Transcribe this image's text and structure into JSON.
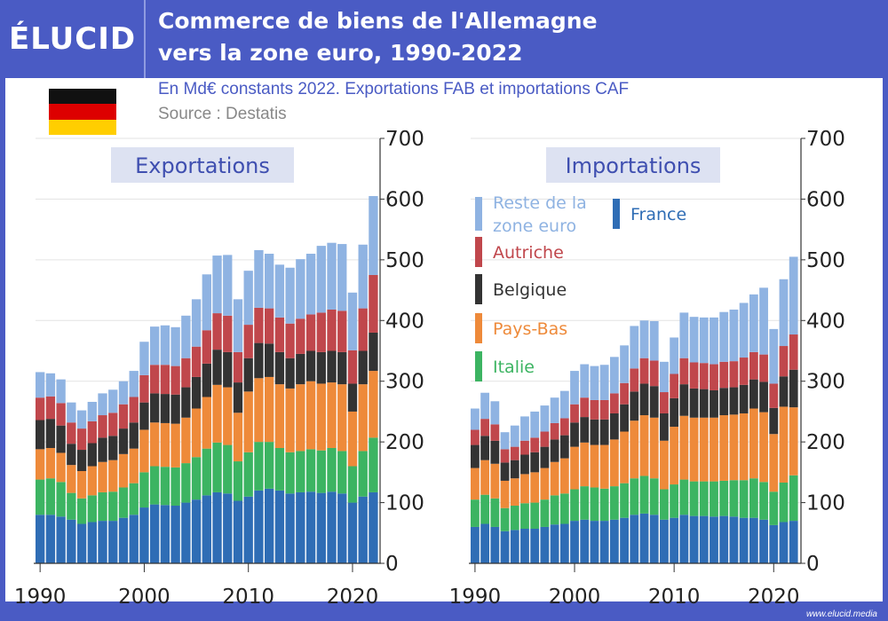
{
  "header": {
    "brand": "ÉLUCID",
    "title_line1": "Commerce de biens de l'Allemagne",
    "title_line2": "vers la zone euro, 1990-2022",
    "subtitle": "En Md€ constants 2022. Exportations FAB et importations CAF",
    "source": "Source : Destatis"
  },
  "footer": {
    "url": "www.elucid.media"
  },
  "colors": {
    "background": "#4a5bc4",
    "France": "#2f6db5",
    "Italie": "#3cb462",
    "Pays-Bas": "#ee8a3a",
    "Belgique": "#333333",
    "Autriche": "#c0474c",
    "Reste de la zone euro": "#8fb3e2",
    "flag": [
      "#111111",
      "#dd0000",
      "#ffce00"
    ]
  },
  "chart_data": [
    {
      "type": "bar",
      "stacked": true,
      "title": "Exportations",
      "x": [
        1990,
        1991,
        1992,
        1993,
        1994,
        1995,
        1996,
        1997,
        1998,
        1999,
        2000,
        2001,
        2002,
        2003,
        2004,
        2005,
        2006,
        2007,
        2008,
        2009,
        2010,
        2011,
        2012,
        2013,
        2014,
        2015,
        2016,
        2017,
        2018,
        2019,
        2020,
        2021,
        2022
      ],
      "ylim": [
        0,
        700
      ],
      "yticks": [
        0,
        100,
        200,
        300,
        400,
        500,
        600,
        700
      ],
      "xticks": [
        1990,
        2000,
        2010,
        2020
      ],
      "series": [
        {
          "name": "France",
          "values": [
            80,
            80,
            77,
            72,
            65,
            68,
            70,
            70,
            75,
            80,
            92,
            97,
            96,
            95,
            100,
            105,
            112,
            117,
            115,
            103,
            110,
            120,
            123,
            120,
            115,
            117,
            118,
            116,
            118,
            115,
            100,
            110,
            117
          ]
        },
        {
          "name": "Italie",
          "values": [
            58,
            60,
            57,
            44,
            42,
            44,
            47,
            48,
            50,
            52,
            58,
            63,
            63,
            63,
            65,
            70,
            77,
            82,
            80,
            65,
            73,
            80,
            77,
            70,
            68,
            68,
            70,
            70,
            72,
            70,
            60,
            75,
            90
          ]
        },
        {
          "name": "Pays-Bas",
          "values": [
            50,
            50,
            48,
            46,
            45,
            48,
            50,
            52,
            55,
            57,
            70,
            72,
            72,
            72,
            75,
            80,
            85,
            95,
            95,
            80,
            100,
            105,
            107,
            105,
            105,
            110,
            112,
            110,
            108,
            110,
            90,
            110,
            110
          ]
        },
        {
          "name": "Belgique",
          "values": [
            48,
            48,
            45,
            35,
            35,
            38,
            40,
            40,
            42,
            43,
            45,
            48,
            48,
            48,
            50,
            52,
            55,
            58,
            58,
            50,
            55,
            58,
            55,
            53,
            50,
            50,
            50,
            52,
            52,
            53,
            46,
            55,
            63
          ]
        },
        {
          "name": "Autriche",
          "values": [
            37,
            37,
            37,
            35,
            35,
            36,
            37,
            38,
            40,
            42,
            45,
            47,
            48,
            47,
            48,
            50,
            55,
            60,
            60,
            50,
            55,
            58,
            58,
            57,
            57,
            58,
            60,
            65,
            68,
            68,
            55,
            70,
            95
          ]
        },
        {
          "name": "Reste de la zone euro",
          "values": [
            42,
            38,
            39,
            33,
            30,
            32,
            36,
            38,
            38,
            43,
            55,
            63,
            65,
            64,
            70,
            78,
            92,
            95,
            100,
            87,
            89,
            95,
            90,
            87,
            92,
            98,
            100,
            110,
            110,
            110,
            95,
            105,
            130
          ]
        }
      ]
    },
    {
      "type": "bar",
      "stacked": true,
      "title": "Importations",
      "x": [
        1990,
        1991,
        1992,
        1993,
        1994,
        1995,
        1996,
        1997,
        1998,
        1999,
        2000,
        2001,
        2002,
        2003,
        2004,
        2005,
        2006,
        2007,
        2008,
        2009,
        2010,
        2011,
        2012,
        2013,
        2014,
        2015,
        2016,
        2017,
        2018,
        2019,
        2020,
        2021,
        2022
      ],
      "ylim": [
        0,
        700
      ],
      "yticks": [
        0,
        100,
        200,
        300,
        400,
        500,
        600,
        700
      ],
      "xticks": [
        1990,
        2000,
        2010,
        2020
      ],
      "series": [
        {
          "name": "France",
          "values": [
            60,
            65,
            60,
            53,
            55,
            57,
            57,
            60,
            64,
            65,
            70,
            72,
            70,
            70,
            72,
            75,
            80,
            82,
            80,
            72,
            75,
            80,
            78,
            78,
            77,
            78,
            77,
            75,
            75,
            72,
            63,
            68,
            70
          ]
        },
        {
          "name": "Italie",
          "values": [
            45,
            48,
            47,
            38,
            40,
            42,
            43,
            45,
            48,
            50,
            52,
            55,
            55,
            53,
            55,
            57,
            60,
            62,
            60,
            50,
            55,
            58,
            57,
            57,
            58,
            58,
            60,
            62,
            65,
            62,
            55,
            65,
            75
          ]
        },
        {
          "name": "Pays-Bas",
          "values": [
            52,
            57,
            57,
            45,
            45,
            48,
            50,
            52,
            55,
            58,
            70,
            72,
            70,
            72,
            77,
            85,
            95,
            100,
            100,
            80,
            95,
            105,
            105,
            105,
            105,
            108,
            108,
            110,
            115,
            115,
            95,
            125,
            112
          ]
        },
        {
          "name": "Belgique",
          "values": [
            38,
            40,
            38,
            30,
            30,
            32,
            33,
            35,
            37,
            38,
            40,
            42,
            42,
            42,
            43,
            45,
            48,
            52,
            52,
            45,
            47,
            52,
            48,
            47,
            45,
            45,
            45,
            47,
            48,
            50,
            43,
            50,
            62
          ]
        },
        {
          "name": "Autriche",
          "values": [
            25,
            28,
            27,
            22,
            22,
            23,
            24,
            25,
            27,
            28,
            30,
            32,
            32,
            32,
            33,
            35,
            38,
            42,
            42,
            35,
            40,
            43,
            43,
            43,
            43,
            43,
            43,
            45,
            45,
            45,
            40,
            50,
            58
          ]
        },
        {
          "name": "Reste de la zone euro",
          "values": [
            35,
            43,
            38,
            28,
            35,
            40,
            43,
            43,
            42,
            45,
            55,
            55,
            56,
            58,
            60,
            62,
            70,
            62,
            65,
            50,
            60,
            75,
            75,
            75,
            77,
            82,
            85,
            90,
            95,
            110,
            90,
            110,
            128
          ]
        }
      ]
    }
  ]
}
